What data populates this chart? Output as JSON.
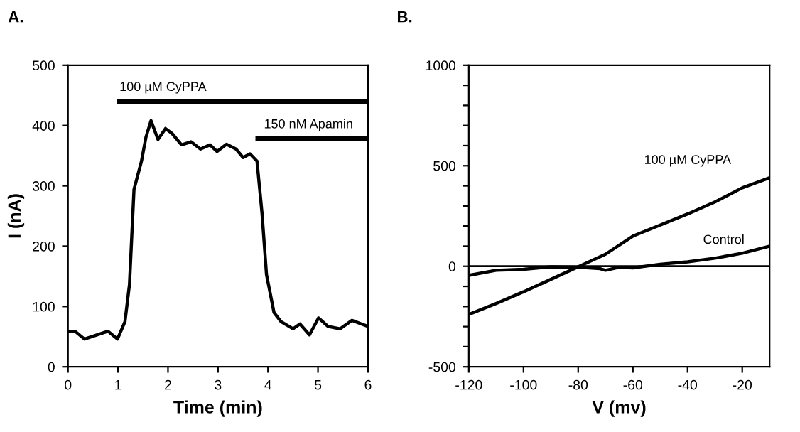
{
  "chart_data": [
    {
      "type": "line",
      "title": "A.",
      "xlabel": "Time (min)",
      "ylabel": "I (nA)",
      "xlim": [
        0,
        6
      ],
      "xticks": [
        0,
        1,
        2,
        3,
        4,
        5,
        6
      ],
      "ylim": [
        0,
        500
      ],
      "yticks": [
        0,
        100,
        200,
        300,
        400,
        500
      ],
      "grid": false,
      "legend": false,
      "series": [
        {
          "color": "#000000",
          "x": [
            0,
            0.14,
            0.33,
            0.8,
            0.99,
            1.14,
            1.23,
            1.32,
            1.47,
            1.56,
            1.66,
            1.8,
            1.95,
            2.08,
            2.27,
            2.46,
            2.65,
            2.84,
            2.98,
            3.17,
            3.36,
            3.5,
            3.64,
            3.78,
            3.88,
            3.97,
            4.12,
            4.26,
            4.5,
            4.64,
            4.83,
            5.01,
            5.2,
            5.44,
            5.68,
            6.0
          ],
          "values": [
            59,
            59,
            46,
            59,
            46,
            75,
            137,
            294,
            341,
            381,
            408,
            377,
            395,
            387,
            368,
            373,
            361,
            368,
            357,
            369,
            361,
            347,
            353,
            341,
            255,
            153,
            90,
            75,
            63,
            71,
            53,
            81,
            67,
            63,
            77,
            67
          ]
        },
        {
          "name": "100 µM CyPPA",
          "color": "#000000",
          "x": [
            1.03,
            6
          ],
          "values": [
            440,
            440
          ]
        },
        {
          "name": "150 nM Apamin",
          "color": "#000000",
          "x": [
            3.8,
            6
          ],
          "values": [
            378,
            378
          ]
        }
      ]
    },
    {
      "type": "line",
      "title": "B.",
      "xlabel": "V (mv)",
      "xlim": [
        -120,
        -10
      ],
      "xticks": [
        -120,
        -100,
        -80,
        -60,
        -40,
        -20
      ],
      "ylim": [
        -500,
        1000
      ],
      "yticks": [
        -500,
        {
          "value": -400,
          "label": null
        },
        {
          "value": -300,
          "label": null
        },
        {
          "value": -200,
          "label": null
        },
        {
          "value": -100,
          "label": null
        },
        0,
        {
          "value": 100,
          "label": null
        },
        {
          "value": 200,
          "label": null
        },
        {
          "value": 300,
          "label": null
        },
        {
          "value": 400,
          "label": null
        },
        500,
        {
          "value": 600,
          "label": null
        },
        {
          "value": 700,
          "label": null
        },
        {
          "value": 800,
          "label": null
        },
        {
          "value": 900,
          "label": null
        },
        1000
      ],
      "grid": false,
      "legend": false,
      "ref_lines": [
        {
          "axis": "y",
          "value": 0,
          "color": "#000000"
        }
      ],
      "series": [
        {
          "name": "100 µM CyPPA",
          "color": "#000000",
          "x": [
            -120,
            -110,
            -100,
            -90,
            -80,
            -70,
            -60,
            -50,
            -40,
            -30,
            -20,
            -10
          ],
          "values": [
            -240,
            -185,
            -127,
            -65,
            -3,
            60,
            150,
            205,
            260,
            320,
            390,
            440
          ]
        },
        {
          "name": "Control",
          "color": "#000000",
          "x": [
            -120,
            -110,
            -100,
            -90,
            -80,
            -72,
            -70,
            -65,
            -60,
            -50,
            -40,
            -30,
            -20,
            -10
          ],
          "values": [
            -45,
            -20,
            -15,
            -3,
            -5,
            -12,
            -20,
            -5,
            -8,
            10,
            22,
            40,
            65,
            100
          ]
        }
      ]
    }
  ]
}
